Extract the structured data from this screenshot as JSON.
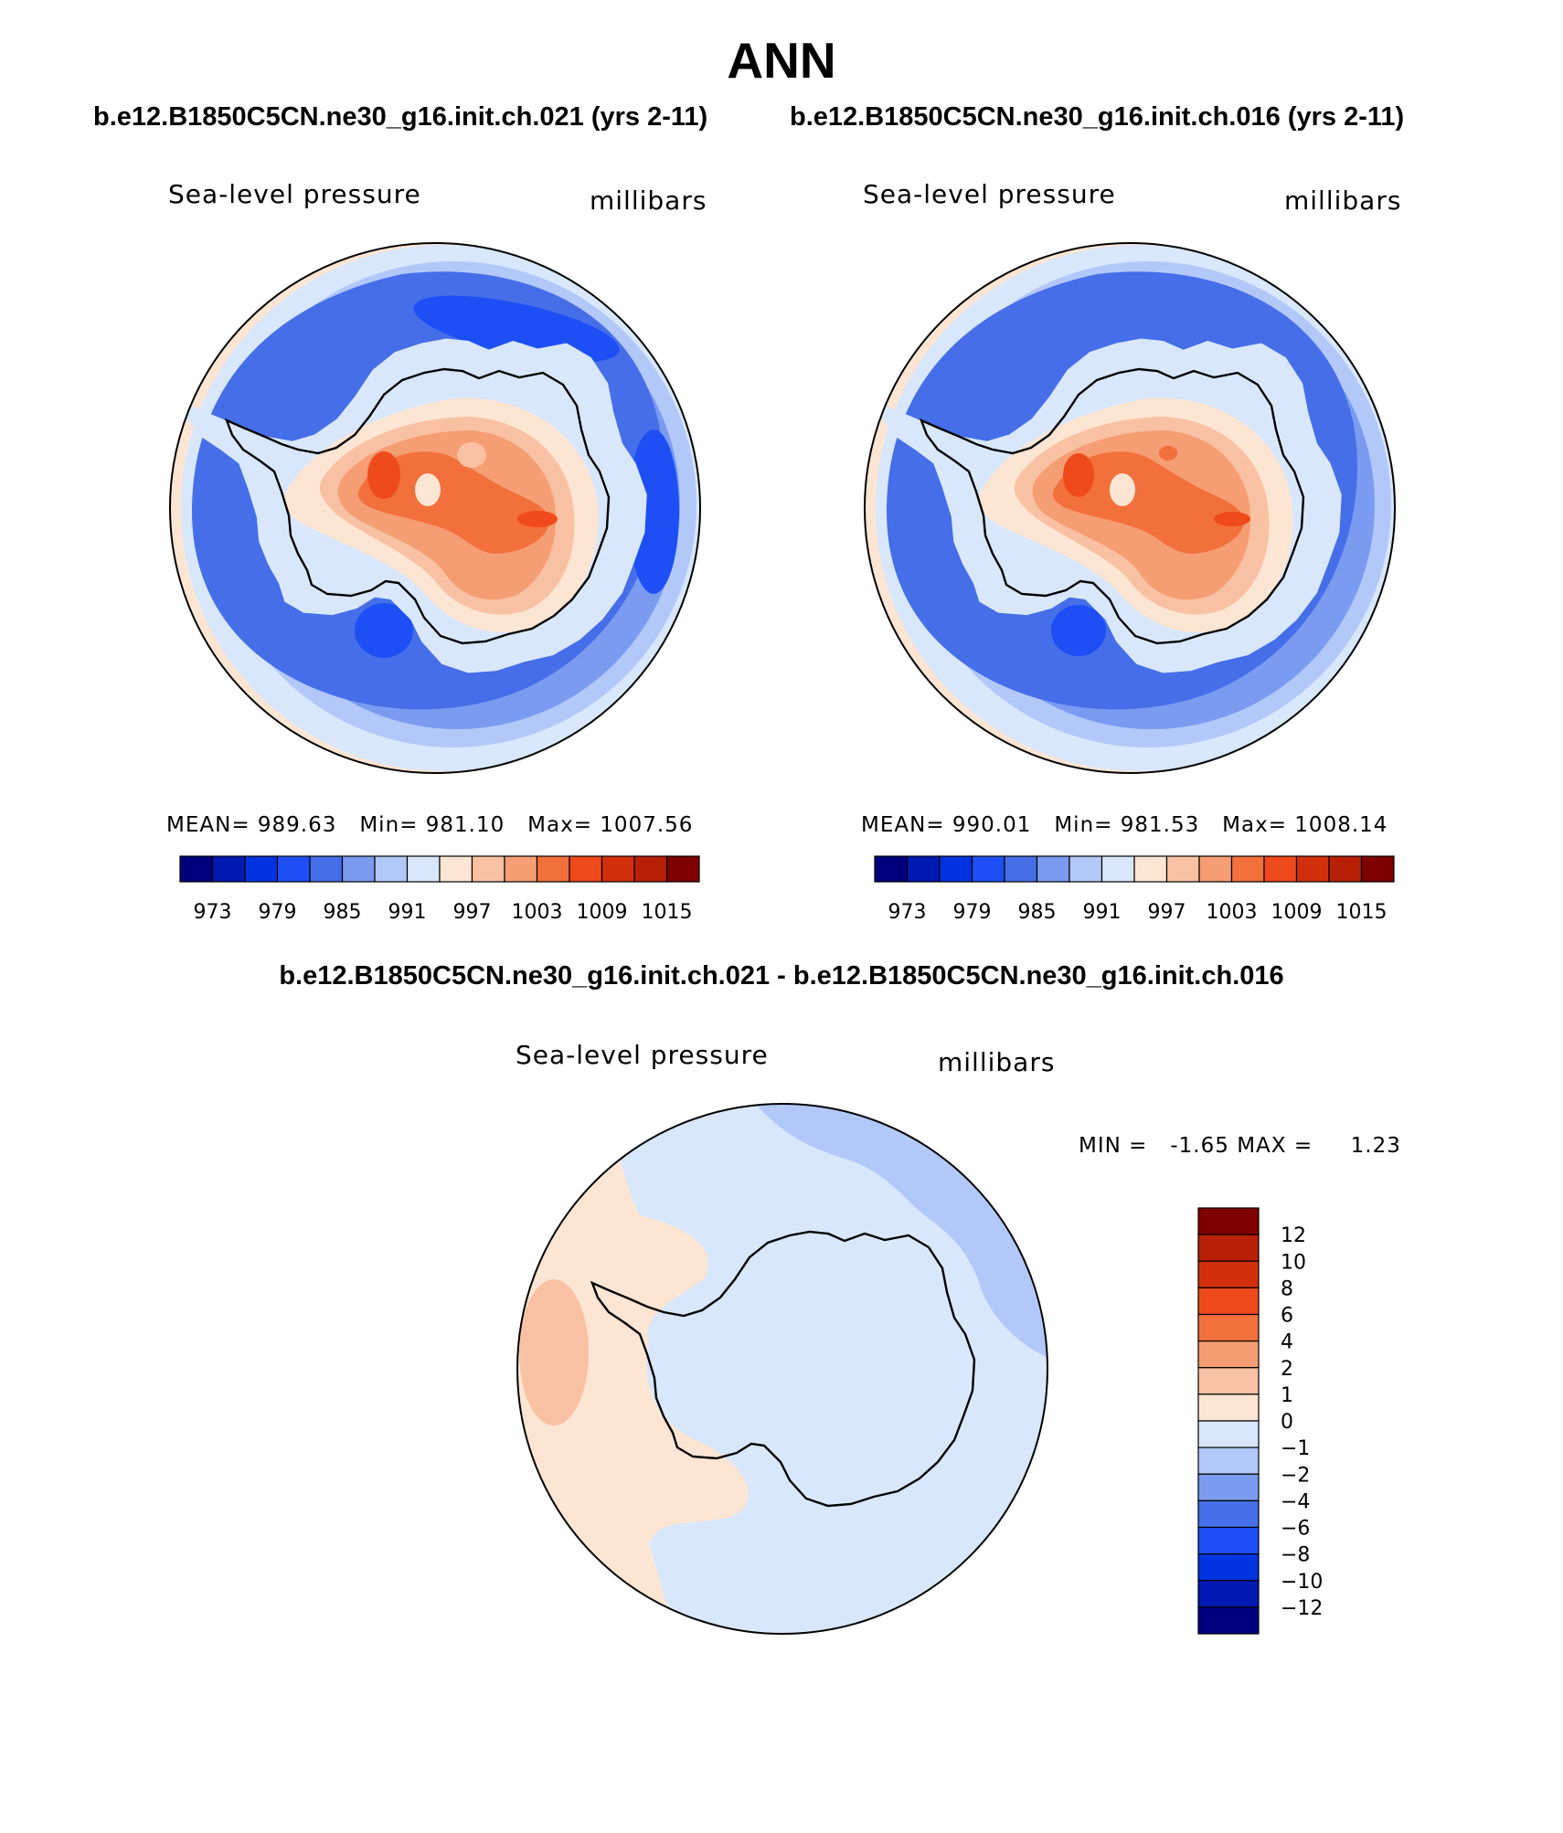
{
  "page": {
    "title": "ANN",
    "case_header_left": "b.e12.B1850C5CN.ne30_g16.init.ch.021 (yrs 2-11)",
    "case_header_right": "b.e12.B1850C5CN.ne30_g16.init.ch.016 (yrs 2-11)",
    "diff_header": "b.e12.B1850C5CN.ne30_g16.init.ch.021 - b.e12.B1850C5CN.ne30_g16.init.ch.016"
  },
  "colors": {
    "abs_scale": [
      "#00007f",
      "#0019b2",
      "#0033e0",
      "#1e4ff5",
      "#466ee8",
      "#7a9bf0",
      "#b2c8f8",
      "#d8e7fb",
      "#fde5d3",
      "#f9c1a3",
      "#f59d73",
      "#f2703c",
      "#ef4a1c",
      "#d2300d",
      "#b82005",
      "#7f0000"
    ],
    "diff_scale": [
      "#00007f",
      "#0019b2",
      "#0033e0",
      "#1e4ff5",
      "#466ee8",
      "#7a9bf0",
      "#b2c8f8",
      "#d8e7fb",
      "#fde5d3",
      "#f9c1a3",
      "#f59d73",
      "#f2703c",
      "#ef4a1c",
      "#d2300d",
      "#b82005",
      "#7f0000"
    ],
    "coast": "#000000"
  },
  "chart_data": [
    {
      "type": "heatmap",
      "panel": "case1",
      "subtitle_left": "Sea-level pressure",
      "subtitle_right": "millibars",
      "stats": {
        "mean": "989.63",
        "min": "981.10",
        "max": "1007.56"
      },
      "stats_text": {
        "mean_label": "MEAN=",
        "mean": "989.63",
        "min_label": "Min=",
        "min": "981.10",
        "max_label": "Max=",
        "max": "1007.56"
      },
      "colorbar_ticks": [
        "973",
        "979",
        "985",
        "991",
        "997",
        "1003",
        "1009",
        "1015"
      ],
      "projection": "polar stereographic (south pole)"
    },
    {
      "type": "heatmap",
      "panel": "case2",
      "subtitle_left": "Sea-level pressure",
      "subtitle_right": "millibars",
      "stats": {
        "mean": "990.01",
        "min": "981.53",
        "max": "1008.14"
      },
      "stats_text": {
        "mean_label": "MEAN=",
        "mean": "990.01",
        "min_label": "Min=",
        "min": "981.53",
        "max_label": "Max=",
        "max": "1008.14"
      },
      "colorbar_ticks": [
        "973",
        "979",
        "985",
        "991",
        "997",
        "1003",
        "1009",
        "1015"
      ],
      "projection": "polar stereographic (south pole)"
    },
    {
      "type": "heatmap",
      "panel": "difference",
      "subtitle_left": "Sea-level pressure",
      "subtitle_right": "millibars",
      "stats_text": {
        "min_label": "MIN =",
        "min": "-1.65",
        "max_label": "MAX =",
        "max": "1.23"
      },
      "colorbar_ticks": [
        "12",
        "10",
        "8",
        "6",
        "4",
        "2",
        "1",
        "0",
        "-1",
        "-2",
        "-4",
        "-6",
        "-8",
        "-10",
        "-12"
      ],
      "projection": "polar stereographic (south pole)"
    }
  ]
}
